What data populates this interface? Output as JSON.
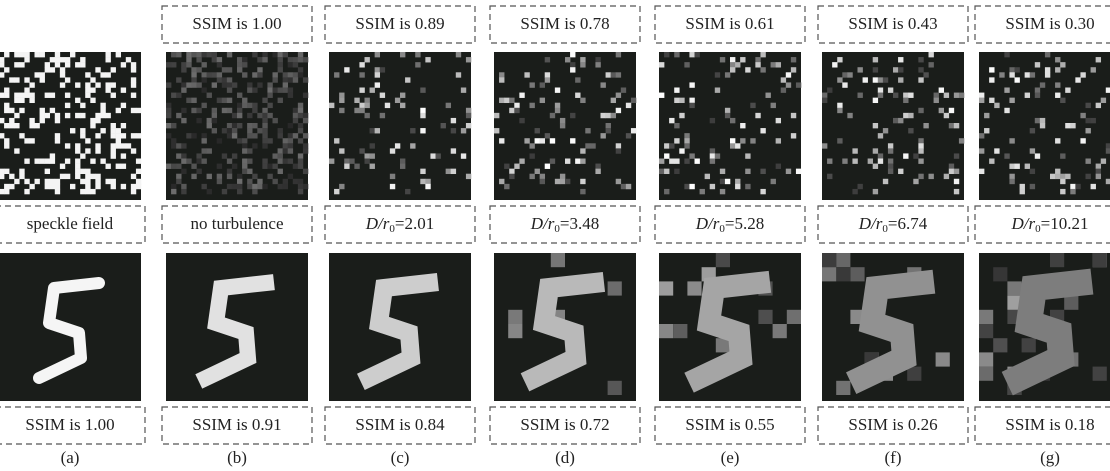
{
  "panels": [
    {
      "letter": "(a)",
      "middle_label": "speckle field",
      "bottom_label": "SSIM is 1.00"
    },
    {
      "letter": "(b)",
      "top_label": "SSIM is 1.00",
      "middle_label": "no turbulence",
      "bottom_label": "SSIM is 0.91"
    },
    {
      "letter": "(c)",
      "top_label": "SSIM is 0.89",
      "middle_label": {
        "italic": "D/r",
        "sub": "0",
        "rest": "=2.01"
      },
      "bottom_label": "SSIM is 0.84"
    },
    {
      "letter": "(d)",
      "top_label": "SSIM is 0.78",
      "middle_label": {
        "italic": "D/r",
        "sub": "0",
        "rest": "=3.48"
      },
      "bottom_label": "SSIM is 0.72"
    },
    {
      "letter": "(e)",
      "top_label": "SSIM is 0.61",
      "middle_label": {
        "italic": "D/r",
        "sub": "0",
        "rest": "=5.28"
      },
      "bottom_label": "SSIM is 0.55"
    },
    {
      "letter": "(f)",
      "top_label": "SSIM is 0.43",
      "middle_label": {
        "italic": "D/r",
        "sub": "0",
        "rest": "=6.74"
      },
      "bottom_label": "SSIM is 0.26"
    },
    {
      "letter": "(g)",
      "top_label": "SSIM is 0.30",
      "middle_label": {
        "italic": "D/r",
        "sub": "0",
        "rest": "=10.21"
      },
      "bottom_label": "SSIM is 0.18"
    }
  ]
}
